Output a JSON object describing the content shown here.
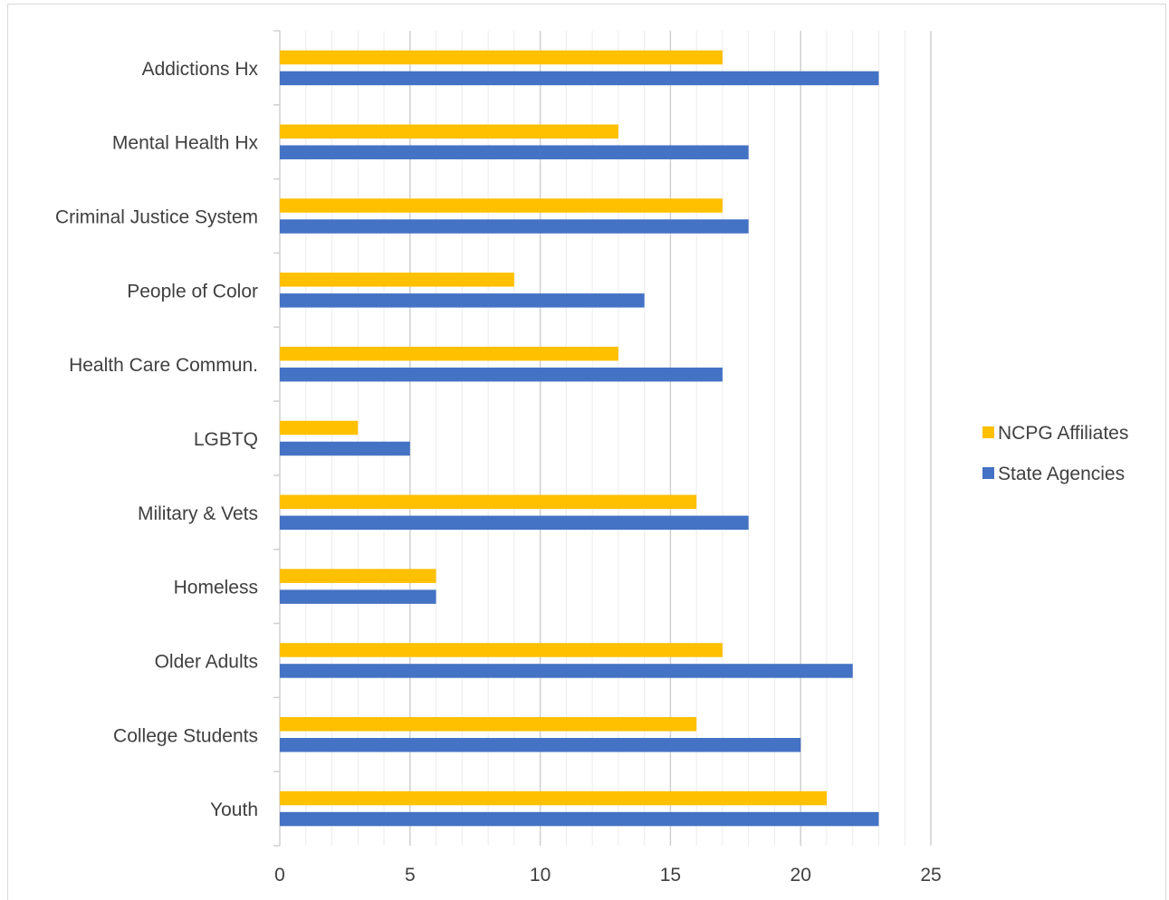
{
  "chart_data": {
    "type": "bar",
    "orientation": "horizontal",
    "title": "",
    "xlabel": "",
    "ylabel": "",
    "categories": [
      "Addictions Hx",
      "Mental Health Hx",
      "Criminal Justice System",
      "People of Color",
      "Health Care Commun.",
      "LGBTQ",
      "Military & Vets",
      "Homeless",
      "Older Adults",
      "College Students",
      "Youth"
    ],
    "series": [
      {
        "name": "NCPG Affiliates",
        "color": "#FFC000",
        "values": [
          17,
          13,
          17,
          9,
          13,
          3,
          16,
          6,
          17,
          16,
          21
        ]
      },
      {
        "name": "State Agencies",
        "color": "#4472C4",
        "values": [
          23,
          18,
          18,
          14,
          17,
          5,
          18,
          6,
          22,
          20,
          23
        ]
      }
    ],
    "xlim": [
      0,
      25
    ],
    "xticks": [
      "0",
      "5",
      "10",
      "15",
      "20",
      "25"
    ],
    "major_grid": true,
    "minor_grid": true,
    "legend_position": "right"
  }
}
